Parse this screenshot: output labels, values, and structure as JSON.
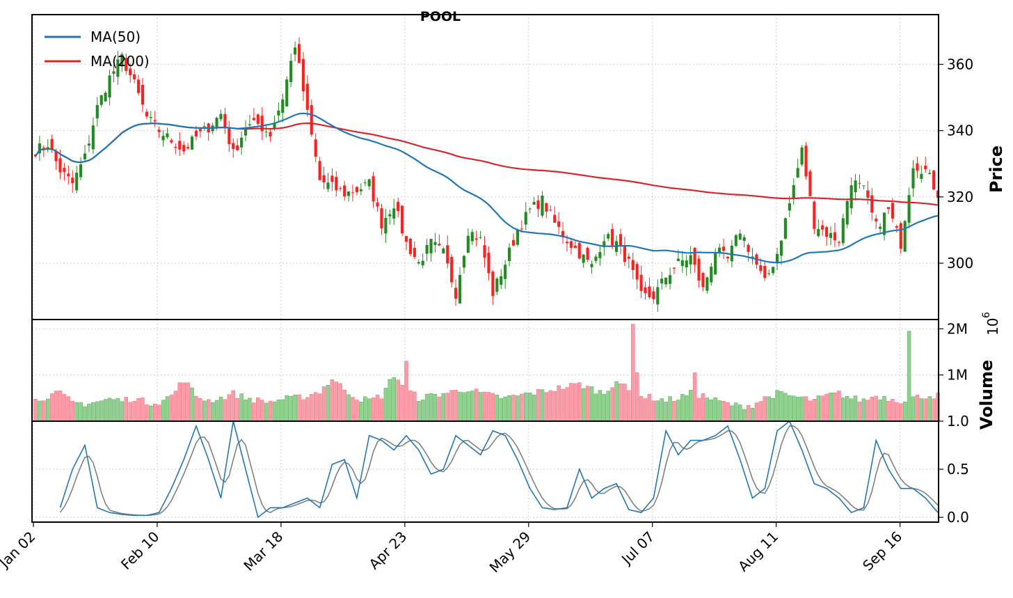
{
  "chart_data": {
    "type": "candlestick",
    "title": "POOL",
    "x_tick_labels": [
      "Jan 02",
      "Feb 10",
      "Mar 18",
      "Apr 23",
      "May 29",
      "Jul 07",
      "Aug 11",
      "Sep 16"
    ],
    "legend": {
      "position": "top-left",
      "entries": [
        "MA(50)",
        "MA(200)"
      ]
    },
    "colors": {
      "up": "#228b22",
      "down": "#ff2020",
      "ma50": "#1f77b4",
      "ma200": "#d62728",
      "vol_up": "#8fd18f",
      "vol_down": "#ff9aa6",
      "stoch_k": "#1f77b4",
      "stoch_d": "#808080"
    },
    "price_panel": {
      "ylabel": "Price",
      "y_ticks": [
        "300",
        "320",
        "340",
        "360"
      ],
      "ylim": [
        283,
        375
      ],
      "grid": true
    },
    "volume_panel": {
      "ylabel": "Volume",
      "scale_label": "10",
      "scale_exp": "6",
      "y_ticks": [
        "1M",
        "2M"
      ],
      "ylim": [
        0,
        2.2
      ]
    },
    "oscillator_panel": {
      "y_ticks": [
        "0.0",
        "0.5",
        "1.0"
      ],
      "ylim": [
        -0.05,
        1.0
      ]
    },
    "ohlc_anchors": {
      "x": [
        0,
        3,
        6,
        9,
        12,
        15,
        18,
        21,
        24,
        27,
        30,
        33,
        36,
        39,
        42,
        45,
        48,
        51,
        54,
        57,
        60,
        63,
        66,
        69,
        72,
        75,
        78,
        81,
        84,
        87,
        90,
        93,
        96,
        99,
        102,
        105,
        108,
        111,
        114,
        117,
        120,
        123,
        126,
        129,
        132,
        135,
        138,
        141,
        144,
        147,
        150,
        153,
        156,
        159,
        162,
        165,
        168,
        171,
        174,
        177,
        180,
        183,
        186,
        189,
        192,
        195,
        198,
        201,
        204,
        207,
        210,
        213,
        216,
        219
      ],
      "close": [
        334,
        336,
        328,
        324,
        332,
        347,
        356,
        362,
        354,
        344,
        340,
        337,
        334,
        338,
        341,
        345,
        333,
        341,
        342,
        339,
        350,
        366,
        345,
        325,
        323,
        321,
        322,
        324,
        312,
        318,
        306,
        300,
        306,
        303,
        291,
        310,
        307,
        291,
        300,
        310,
        316,
        319,
        312,
        307,
        303,
        299,
        308,
        306,
        300,
        290,
        290,
        296,
        300,
        302,
        292,
        304,
        301,
        310,
        302,
        294,
        303,
        318,
        334,
        312,
        309,
        307,
        325,
        322,
        311,
        316,
        306,
        330,
        328,
        321
      ]
    },
    "volume_anchors_M": [
      0.45,
      0.55,
      0.6,
      0.4,
      0.38,
      0.42,
      0.48,
      0.45,
      0.5,
      0.4,
      0.42,
      0.55,
      0.9,
      0.55,
      0.45,
      0.5,
      0.6,
      0.5,
      0.45,
      0.42,
      0.48,
      0.5,
      0.55,
      0.65,
      0.9,
      0.7,
      0.5,
      0.45,
      0.55,
      1.0,
      0.7,
      0.5,
      0.55,
      0.6,
      0.65,
      0.7,
      0.6,
      0.55,
      0.5,
      0.55,
      0.6,
      0.65,
      0.7,
      0.75,
      0.8,
      0.7,
      0.6,
      0.9,
      0.65,
      0.55,
      0.5,
      0.45,
      0.5,
      0.6,
      0.55,
      0.45,
      0.38,
      0.32,
      0.35,
      0.5,
      0.6,
      0.55,
      0.5,
      0.45,
      0.55,
      0.6,
      0.5,
      0.45,
      0.55,
      0.5,
      0.45,
      0.5,
      0.55,
      0.55
    ],
    "volume_spikes": [
      {
        "i": 145,
        "value": 2.1
      },
      {
        "i": 146,
        "value": 1.05
      },
      {
        "i": 90,
        "value": 1.3
      },
      {
        "i": 72,
        "value": 0.9
      },
      {
        "i": 212,
        "value": 1.95
      },
      {
        "i": 160,
        "value": 1.05
      }
    ],
    "stoch_k_anchors": [
      0.0,
      0.0,
      0.1,
      0.5,
      0.75,
      0.1,
      0.05,
      0.03,
      0.02,
      0.02,
      0.05,
      0.3,
      0.6,
      0.95,
      0.6,
      0.2,
      1.0,
      0.5,
      0.0,
      0.1,
      0.1,
      0.15,
      0.2,
      0.1,
      0.55,
      0.6,
      0.2,
      0.85,
      0.8,
      0.7,
      0.85,
      0.7,
      0.45,
      0.5,
      0.85,
      0.75,
      0.65,
      0.9,
      0.85,
      0.6,
      0.3,
      0.1,
      0.08,
      0.1,
      0.5,
      0.2,
      0.3,
      0.35,
      0.08,
      0.05,
      0.2,
      0.9,
      0.65,
      0.8,
      0.8,
      0.85,
      0.95,
      0.6,
      0.2,
      0.3,
      0.9,
      1.0,
      0.7,
      0.35,
      0.3,
      0.2,
      0.05,
      0.1,
      0.8,
      0.5,
      0.3,
      0.3,
      0.2,
      0.05
    ]
  }
}
